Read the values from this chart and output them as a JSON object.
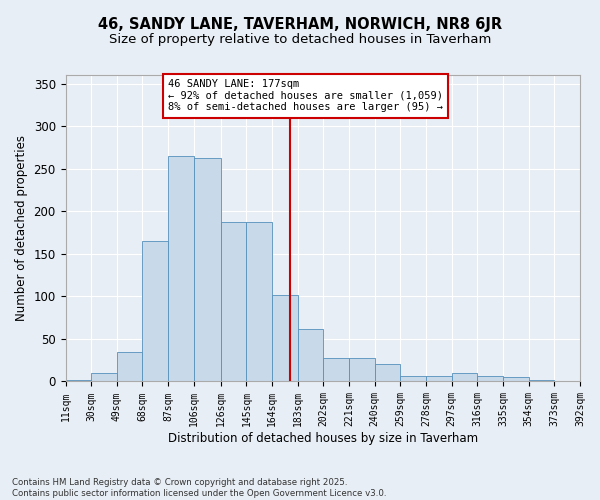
{
  "title": "46, SANDY LANE, TAVERHAM, NORWICH, NR8 6JR",
  "subtitle": "Size of property relative to detached houses in Taverham",
  "xlabel": "Distribution of detached houses by size in Taverham",
  "ylabel": "Number of detached properties",
  "bin_edges": [
    11,
    30,
    49,
    68,
    87,
    106,
    126,
    145,
    164,
    183,
    202,
    221,
    240,
    259,
    278,
    297,
    316,
    335,
    354,
    373,
    392
  ],
  "bar_heights": [
    2,
    10,
    35,
    165,
    265,
    263,
    187,
    187,
    101,
    62,
    27,
    27,
    20,
    6,
    6,
    10,
    7,
    5,
    2,
    1
  ],
  "bar_color": "#c8d9ea",
  "bar_edge_color": "#5590bb",
  "vline_x": 177,
  "vline_color": "#cc0000",
  "annotation_text": "46 SANDY LANE: 177sqm\n← 92% of detached houses are smaller (1,059)\n8% of semi-detached houses are larger (95) →",
  "annotation_box_color": "#ffffff",
  "annotation_box_edge": "#cc0000",
  "footnote": "Contains HM Land Registry data © Crown copyright and database right 2025.\nContains public sector information licensed under the Open Government Licence v3.0.",
  "ylim": [
    0,
    360
  ],
  "background_color": "#e8eef5",
  "plot_bg_color": "#e8eef5",
  "title_fontsize": 10.5,
  "subtitle_fontsize": 9.5,
  "tick_label_fontsize": 7,
  "axis_label_fontsize": 8.5,
  "yticks": [
    0,
    50,
    100,
    150,
    200,
    250,
    300,
    350
  ]
}
